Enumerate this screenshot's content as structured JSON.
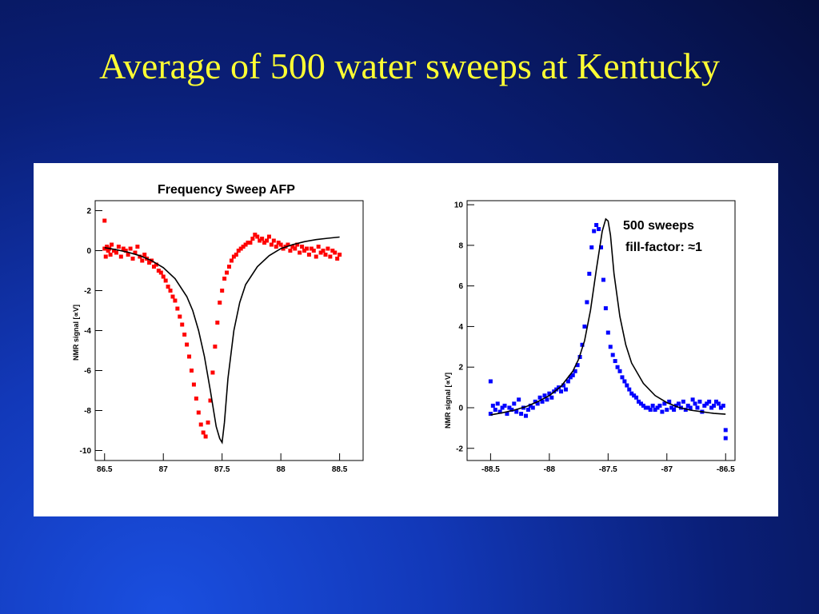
{
  "slide": {
    "title": "Average of 500 water sweeps at Kentucky",
    "title_color": "#ffff33"
  },
  "chart_data": [
    {
      "type": "scatter",
      "title": "Frequency Sweep AFP",
      "ylabel": "NMR signal [∝V]",
      "xlabel": "",
      "xlim": [
        86.42,
        88.7
      ],
      "ylim": [
        -10.5,
        2.5
      ],
      "xticks": [
        "86.5",
        "87",
        "87.5",
        "88",
        "88.5"
      ],
      "yticks": [
        "2",
        "0",
        "-2",
        "-4",
        "-6",
        "-8",
        "-10"
      ],
      "grid": false,
      "series": [
        {
          "kind": "points",
          "color": "#ff0000",
          "x": [
            86.5,
            86.5,
            86.51,
            86.52,
            86.53,
            86.54,
            86.55,
            86.56,
            86.58,
            86.6,
            86.62,
            86.64,
            86.66,
            86.68,
            86.7,
            86.72,
            86.74,
            86.76,
            86.78,
            86.8,
            86.82,
            86.84,
            86.86,
            86.88,
            86.9,
            86.92,
            86.94,
            86.96,
            86.98,
            87.0,
            87.02,
            87.04,
            87.06,
            87.08,
            87.1,
            87.12,
            87.14,
            87.16,
            87.18,
            87.2,
            87.22,
            87.24,
            87.26,
            87.28,
            87.3,
            87.32,
            87.34,
            87.36,
            87.38,
            87.4,
            87.42,
            87.44,
            87.46,
            87.48,
            87.5,
            87.52,
            87.54,
            87.56,
            87.58,
            87.6,
            87.62,
            87.64,
            87.66,
            87.68,
            87.7,
            87.72,
            87.74,
            87.76,
            87.78,
            87.8,
            87.82,
            87.84,
            87.86,
            87.88,
            87.9,
            87.92,
            87.94,
            87.96,
            87.98,
            88.0,
            88.02,
            88.04,
            88.06,
            88.08,
            88.1,
            88.12,
            88.14,
            88.16,
            88.18,
            88.2,
            88.22,
            88.24,
            88.26,
            88.28,
            88.3,
            88.32,
            88.34,
            88.36,
            88.38,
            88.4,
            88.42,
            88.44,
            88.46,
            88.48,
            88.5
          ],
          "y": [
            1.5,
            0.1,
            -0.3,
            0.2,
            0.0,
            0.1,
            -0.2,
            0.3,
            0.0,
            -0.1,
            0.2,
            -0.3,
            0.1,
            0.0,
            -0.2,
            0.1,
            -0.4,
            -0.1,
            0.2,
            -0.3,
            -0.5,
            -0.2,
            -0.4,
            -0.6,
            -0.5,
            -0.8,
            -0.7,
            -1.0,
            -1.1,
            -1.3,
            -1.5,
            -1.8,
            -2.0,
            -2.3,
            -2.5,
            -2.9,
            -3.3,
            -3.7,
            -4.2,
            -4.7,
            -5.3,
            -6.0,
            -6.7,
            -7.4,
            -8.1,
            -8.7,
            -9.1,
            -9.3,
            -8.6,
            -7.5,
            -6.1,
            -4.8,
            -3.6,
            -2.6,
            -2.0,
            -1.4,
            -1.1,
            -0.8,
            -0.5,
            -0.3,
            -0.2,
            0.0,
            0.1,
            0.2,
            0.3,
            0.4,
            0.4,
            0.6,
            0.8,
            0.7,
            0.5,
            0.6,
            0.4,
            0.5,
            0.7,
            0.3,
            0.5,
            0.2,
            0.4,
            0.3,
            0.1,
            0.2,
            0.3,
            0.0,
            0.2,
            0.1,
            0.3,
            -0.1,
            0.2,
            0.0,
            0.1,
            -0.2,
            0.1,
            0.0,
            -0.3,
            0.2,
            -0.1,
            0.0,
            -0.2,
            0.1,
            -0.3,
            0.0,
            -0.1,
            -0.4,
            -0.2
          ]
        },
        {
          "kind": "line",
          "color": "#000000",
          "x": [
            86.5,
            86.6,
            86.7,
            86.8,
            86.9,
            87.0,
            87.1,
            87.2,
            87.25,
            87.3,
            87.35,
            87.4,
            87.45,
            87.48,
            87.5,
            87.52,
            87.55,
            87.6,
            87.65,
            87.7,
            87.8,
            87.9,
            88.0,
            88.1,
            88.2,
            88.3,
            88.4,
            88.5
          ],
          "y": [
            0.15,
            0.05,
            -0.08,
            -0.25,
            -0.5,
            -0.85,
            -1.4,
            -2.3,
            -3.0,
            -4.0,
            -5.3,
            -7.0,
            -8.8,
            -9.4,
            -9.6,
            -8.6,
            -6.4,
            -4.0,
            -2.6,
            -1.7,
            -0.8,
            -0.25,
            0.1,
            0.3,
            0.45,
            0.55,
            0.62,
            0.68
          ]
        }
      ]
    },
    {
      "type": "scatter",
      "title": "",
      "ylabel": "NMR signal [∝V]",
      "xlabel": "",
      "xlim": [
        -88.7,
        -86.42
      ],
      "ylim": [
        -2.6,
        10.2
      ],
      "xticks": [
        "-88.5",
        "-88",
        "-87.5",
        "-87",
        "-86.5"
      ],
      "yticks": [
        "10",
        "8",
        "6",
        "4",
        "2",
        "0",
        "-2"
      ],
      "grid": false,
      "annotations": [
        "500 sweeps",
        "fill-factor: ≈1"
      ],
      "series": [
        {
          "kind": "points",
          "color": "#0000ff",
          "x": [
            -88.5,
            -88.5,
            -88.48,
            -88.46,
            -88.44,
            -88.42,
            -88.4,
            -88.38,
            -88.36,
            -88.34,
            -88.32,
            -88.3,
            -88.28,
            -88.26,
            -88.24,
            -88.22,
            -88.2,
            -88.18,
            -88.16,
            -88.14,
            -88.12,
            -88.1,
            -88.08,
            -88.06,
            -88.04,
            -88.02,
            -88.0,
            -87.98,
            -87.96,
            -87.94,
            -87.92,
            -87.9,
            -87.88,
            -87.86,
            -87.84,
            -87.82,
            -87.8,
            -87.78,
            -87.76,
            -87.74,
            -87.72,
            -87.7,
            -87.68,
            -87.66,
            -87.64,
            -87.62,
            -87.6,
            -87.58,
            -87.56,
            -87.54,
            -87.52,
            -87.5,
            -87.48,
            -87.46,
            -87.44,
            -87.42,
            -87.4,
            -87.38,
            -87.36,
            -87.34,
            -87.32,
            -87.3,
            -87.28,
            -87.26,
            -87.24,
            -87.22,
            -87.2,
            -87.18,
            -87.16,
            -87.14,
            -87.12,
            -87.1,
            -87.08,
            -87.06,
            -87.04,
            -87.02,
            -87.0,
            -86.98,
            -86.96,
            -86.94,
            -86.92,
            -86.9,
            -86.88,
            -86.86,
            -86.84,
            -86.82,
            -86.8,
            -86.78,
            -86.76,
            -86.74,
            -86.72,
            -86.7,
            -86.68,
            -86.66,
            -86.64,
            -86.62,
            -86.6,
            -86.58,
            -86.56,
            -86.54,
            -86.52,
            -86.5,
            -86.5
          ],
          "y": [
            1.3,
            -0.3,
            0.1,
            -0.1,
            0.2,
            -0.2,
            0.0,
            0.1,
            -0.3,
            0.0,
            -0.1,
            0.2,
            -0.2,
            0.4,
            -0.3,
            0.0,
            -0.4,
            -0.1,
            0.1,
            0.0,
            0.3,
            0.2,
            0.5,
            0.3,
            0.6,
            0.4,
            0.7,
            0.5,
            0.8,
            0.9,
            1.0,
            0.8,
            1.1,
            0.9,
            1.3,
            1.5,
            1.6,
            1.8,
            2.1,
            2.5,
            3.1,
            4.0,
            5.2,
            6.6,
            7.9,
            8.7,
            9.0,
            8.8,
            7.9,
            6.3,
            4.9,
            3.7,
            3.0,
            2.6,
            2.3,
            2.0,
            1.8,
            1.5,
            1.3,
            1.1,
            0.9,
            0.7,
            0.6,
            0.5,
            0.3,
            0.2,
            0.1,
            0.0,
            0.0,
            -0.1,
            0.1,
            -0.1,
            0.0,
            0.1,
            -0.2,
            0.2,
            -0.1,
            0.3,
            0.0,
            -0.1,
            0.1,
            0.2,
            0.0,
            0.3,
            -0.1,
            0.1,
            0.0,
            0.4,
            0.2,
            0.0,
            0.3,
            -0.2,
            0.1,
            0.2,
            0.3,
            0.0,
            0.1,
            0.3,
            0.2,
            0.0,
            0.1,
            -1.1,
            -1.5
          ]
        },
        {
          "kind": "line",
          "color": "#000000",
          "x": [
            -88.5,
            -88.4,
            -88.3,
            -88.2,
            -88.1,
            -88.0,
            -87.9,
            -87.8,
            -87.75,
            -87.7,
            -87.65,
            -87.6,
            -87.55,
            -87.52,
            -87.5,
            -87.48,
            -87.45,
            -87.4,
            -87.35,
            -87.3,
            -87.2,
            -87.1,
            -87.0,
            -86.9,
            -86.8,
            -86.7,
            -86.6,
            -86.5
          ],
          "y": [
            -0.35,
            -0.25,
            -0.12,
            0.05,
            0.3,
            0.6,
            1.05,
            1.8,
            2.4,
            3.3,
            4.8,
            6.8,
            8.7,
            9.3,
            9.2,
            8.5,
            6.6,
            4.5,
            3.1,
            2.2,
            1.2,
            0.6,
            0.25,
            0.02,
            -0.12,
            -0.2,
            -0.28,
            -0.32
          ]
        }
      ]
    }
  ]
}
